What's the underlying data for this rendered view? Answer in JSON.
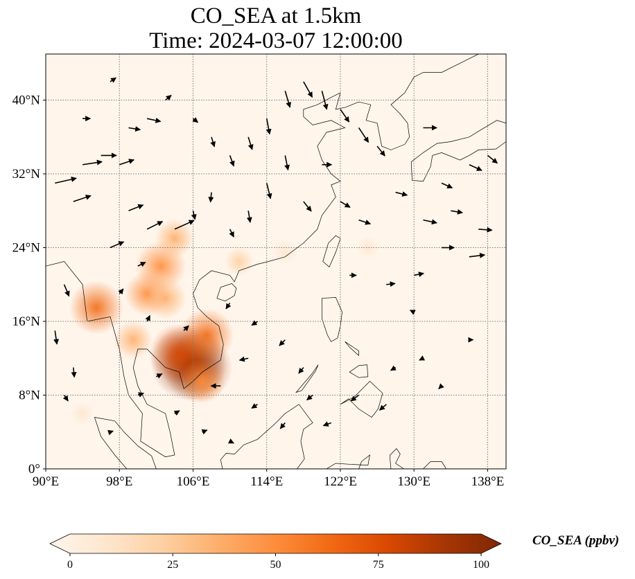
{
  "title": {
    "line1": "CO_SEA at 1.5km",
    "line2": "Time: 2024-03-07 12:00:00"
  },
  "map": {
    "lon_range": [
      90,
      140
    ],
    "lat_range": [
      0,
      45
    ],
    "x_ticks": [
      {
        "value": 90,
        "label": "90°E"
      },
      {
        "value": 98,
        "label": "98°E"
      },
      {
        "value": 106,
        "label": "106°E"
      },
      {
        "value": 114,
        "label": "114°E"
      },
      {
        "value": 122,
        "label": "122°E"
      },
      {
        "value": 130,
        "label": "130°E"
      },
      {
        "value": 138,
        "label": "138°E"
      }
    ],
    "y_ticks": [
      {
        "value": 0,
        "label": "0°"
      },
      {
        "value": 8,
        "label": "8°N"
      },
      {
        "value": 16,
        "label": "16°N"
      },
      {
        "value": 24,
        "label": "24°N"
      },
      {
        "value": 32,
        "label": "32°N"
      },
      {
        "value": 40,
        "label": "40°N"
      }
    ],
    "gridlines": "dotted",
    "field_background": "#fff5eb",
    "hotspots": [
      {
        "lon": 105.5,
        "lat": 11.5,
        "value": 95
      },
      {
        "lon": 106.5,
        "lat": 11.0,
        "value": 85
      },
      {
        "lon": 104.5,
        "lat": 12.5,
        "value": 70
      },
      {
        "lon": 107.5,
        "lat": 14.5,
        "value": 60
      },
      {
        "lon": 102.5,
        "lat": 22.0,
        "value": 55
      },
      {
        "lon": 95.5,
        "lat": 17.5,
        "value": 60
      },
      {
        "lon": 101.0,
        "lat": 19.0,
        "value": 45
      },
      {
        "lon": 103.0,
        "lat": 18.5,
        "value": 40
      },
      {
        "lon": 99.5,
        "lat": 14.0,
        "value": 35
      },
      {
        "lon": 104.0,
        "lat": 25.0,
        "value": 35
      },
      {
        "lon": 107.0,
        "lat": 9.5,
        "value": 45
      },
      {
        "lon": 111.0,
        "lat": 22.5,
        "value": 20
      },
      {
        "lon": 116.0,
        "lat": 23.5,
        "value": 15
      },
      {
        "lon": 125.0,
        "lat": 24.0,
        "value": 10
      },
      {
        "lon": 94.0,
        "lat": 6.0,
        "value": 12
      }
    ],
    "wind_vectors": [
      {
        "lon": 91,
        "lat": 31,
        "u": 2.2,
        "v": 0.5
      },
      {
        "lon": 93,
        "lat": 29,
        "u": 1.8,
        "v": 0.6
      },
      {
        "lon": 94,
        "lat": 33,
        "u": 2.0,
        "v": 0.3
      },
      {
        "lon": 96,
        "lat": 34,
        "u": 1.6,
        "v": 0.0
      },
      {
        "lon": 98,
        "lat": 33,
        "u": 1.5,
        "v": 0.5
      },
      {
        "lon": 99,
        "lat": 28,
        "u": 1.5,
        "v": 0.6
      },
      {
        "lon": 101,
        "lat": 26,
        "u": 1.6,
        "v": 0.8
      },
      {
        "lon": 104,
        "lat": 26,
        "u": 2.0,
        "v": 0.9
      },
      {
        "lon": 97,
        "lat": 24,
        "u": 1.4,
        "v": 0.6
      },
      {
        "lon": 100,
        "lat": 22,
        "u": 0.8,
        "v": 0.4
      },
      {
        "lon": 99,
        "lat": 37,
        "u": 1.2,
        "v": -0.2
      },
      {
        "lon": 101,
        "lat": 38,
        "u": 1.4,
        "v": -0.3
      },
      {
        "lon": 94,
        "lat": 38,
        "u": 0.8,
        "v": 0.0
      },
      {
        "lon": 97,
        "lat": 42,
        "u": 0.6,
        "v": 0.4
      },
      {
        "lon": 103,
        "lat": 40,
        "u": 0.6,
        "v": 0.5
      },
      {
        "lon": 106,
        "lat": 38,
        "u": 0.5,
        "v": -0.4
      },
      {
        "lon": 108,
        "lat": 36,
        "u": 0.3,
        "v": -1.0
      },
      {
        "lon": 110,
        "lat": 34,
        "u": 0.4,
        "v": -1.1
      },
      {
        "lon": 112,
        "lat": 36,
        "u": 0.4,
        "v": -1.3
      },
      {
        "lon": 114,
        "lat": 38,
        "u": 0.3,
        "v": -1.6
      },
      {
        "lon": 116,
        "lat": 41,
        "u": 0.5,
        "v": -1.7
      },
      {
        "lon": 118,
        "lat": 42,
        "u": 0.9,
        "v": -1.6
      },
      {
        "lon": 120,
        "lat": 41,
        "u": 0.5,
        "v": -1.9
      },
      {
        "lon": 122,
        "lat": 39,
        "u": 0.9,
        "v": -1.3
      },
      {
        "lon": 124,
        "lat": 37,
        "u": 1.0,
        "v": -1.5
      },
      {
        "lon": 126,
        "lat": 35,
        "u": 0.8,
        "v": -1.0
      },
      {
        "lon": 116,
        "lat": 34,
        "u": 0.3,
        "v": -1.5
      },
      {
        "lon": 114,
        "lat": 31,
        "u": 0.4,
        "v": -1.6
      },
      {
        "lon": 112,
        "lat": 28,
        "u": 0.2,
        "v": -1.2
      },
      {
        "lon": 108,
        "lat": 30,
        "u": -0.1,
        "v": -1.0
      },
      {
        "lon": 106,
        "lat": 28,
        "u": 0.2,
        "v": -0.9
      },
      {
        "lon": 110,
        "lat": 26,
        "u": 0.4,
        "v": -0.8
      },
      {
        "lon": 118,
        "lat": 29,
        "u": 0.8,
        "v": -1.0
      },
      {
        "lon": 120,
        "lat": 33,
        "u": 1.0,
        "v": 0.0
      },
      {
        "lon": 122,
        "lat": 29,
        "u": 1.0,
        "v": -0.6
      },
      {
        "lon": 124,
        "lat": 27,
        "u": 1.2,
        "v": -0.4
      },
      {
        "lon": 128,
        "lat": 30,
        "u": 1.2,
        "v": -0.3
      },
      {
        "lon": 131,
        "lat": 27,
        "u": 1.4,
        "v": -0.3
      },
      {
        "lon": 134,
        "lat": 28,
        "u": 1.2,
        "v": -0.2
      },
      {
        "lon": 137,
        "lat": 26,
        "u": 1.4,
        "v": -0.1
      },
      {
        "lon": 133,
        "lat": 24,
        "u": 1.3,
        "v": 0.0
      },
      {
        "lon": 136,
        "lat": 23,
        "u": 1.6,
        "v": 0.2
      },
      {
        "lon": 130,
        "lat": 21,
        "u": 1.0,
        "v": 0.2
      },
      {
        "lon": 127,
        "lat": 20,
        "u": 0.9,
        "v": 0.1
      },
      {
        "lon": 123,
        "lat": 21,
        "u": 0.7,
        "v": 0.0
      },
      {
        "lon": 131,
        "lat": 37,
        "u": 1.4,
        "v": 0.0
      },
      {
        "lon": 136,
        "lat": 33,
        "u": 1.3,
        "v": -0.6
      },
      {
        "lon": 138,
        "lat": 34,
        "u": 1.0,
        "v": -0.8
      },
      {
        "lon": 133,
        "lat": 31,
        "u": 1.1,
        "v": -0.5
      },
      {
        "lon": 92,
        "lat": 20,
        "u": 0.5,
        "v": -1.2
      },
      {
        "lon": 91,
        "lat": 15,
        "u": 0.2,
        "v": -1.4
      },
      {
        "lon": 93,
        "lat": 11,
        "u": 0.1,
        "v": -1.0
      },
      {
        "lon": 92,
        "lat": 8,
        "u": 0.4,
        "v": -0.6
      },
      {
        "lon": 110,
        "lat": 18,
        "u": -0.4,
        "v": -0.6
      },
      {
        "lon": 113,
        "lat": 16,
        "u": -0.6,
        "v": -0.4
      },
      {
        "lon": 116,
        "lat": 14,
        "u": -0.6,
        "v": -0.6
      },
      {
        "lon": 118,
        "lat": 11,
        "u": -0.5,
        "v": -0.6
      },
      {
        "lon": 112,
        "lat": 12,
        "u": -0.9,
        "v": -0.2
      },
      {
        "lon": 109,
        "lat": 9,
        "u": -1.0,
        "v": 0.0
      },
      {
        "lon": 113,
        "lat": 7,
        "u": -0.6,
        "v": -0.4
      },
      {
        "lon": 116,
        "lat": 5,
        "u": -0.5,
        "v": -0.6
      },
      {
        "lon": 119,
        "lat": 8,
        "u": -0.6,
        "v": -0.5
      },
      {
        "lon": 121,
        "lat": 5,
        "u": -0.8,
        "v": -0.3
      },
      {
        "lon": 124,
        "lat": 8,
        "u": -0.8,
        "v": -0.6
      },
      {
        "lon": 127,
        "lat": 7,
        "u": -0.7,
        "v": -0.6
      },
      {
        "lon": 128,
        "lat": 11,
        "u": -0.5,
        "v": -0.3
      },
      {
        "lon": 131,
        "lat": 12,
        "u": -0.4,
        "v": -0.2
      },
      {
        "lon": 133,
        "lat": 9,
        "u": -0.3,
        "v": -0.3
      },
      {
        "lon": 136,
        "lat": 14,
        "u": 0.4,
        "v": 0.0
      },
      {
        "lon": 130,
        "lat": 17,
        "u": -0.4,
        "v": 0.2
      },
      {
        "lon": 100,
        "lat": 8,
        "u": 0.6,
        "v": 0.2
      },
      {
        "lon": 104,
        "lat": 6,
        "u": 0.5,
        "v": 0.3
      },
      {
        "lon": 107,
        "lat": 4,
        "u": 0.5,
        "v": 0.2
      },
      {
        "lon": 110,
        "lat": 3,
        "u": 0.4,
        "v": -0.2
      },
      {
        "lon": 97,
        "lat": 4,
        "u": 0.3,
        "v": 0.1
      },
      {
        "lon": 102,
        "lat": 10,
        "u": 0.6,
        "v": 0.3
      },
      {
        "lon": 105,
        "lat": 15,
        "u": 0.5,
        "v": 0.5
      },
      {
        "lon": 101,
        "lat": 16,
        "u": 0.3,
        "v": 0.6
      },
      {
        "lon": 98,
        "lat": 19,
        "u": 0.4,
        "v": 0.5
      }
    ],
    "land_polygons": [
      [
        [
          90,
          22
        ],
        [
          92,
          22.5
        ],
        [
          94,
          20
        ],
        [
          94.5,
          16
        ],
        [
          97,
          16.5
        ],
        [
          98,
          13
        ],
        [
          98.5,
          10
        ],
        [
          99,
          8
        ],
        [
          100.5,
          6
        ],
        [
          100.3,
          3
        ],
        [
          103,
          1.3
        ],
        [
          104,
          1.5
        ],
        [
          103.5,
          4
        ],
        [
          103,
          6
        ],
        [
          101,
          7
        ],
        [
          100,
          9
        ],
        [
          99.5,
          11
        ],
        [
          100,
          13
        ],
        [
          101,
          13
        ],
        [
          102,
          12
        ],
        [
          103,
          11
        ],
        [
          104.5,
          10.5
        ],
        [
          105,
          8.7
        ],
        [
          106,
          9.5
        ],
        [
          107,
          10.5
        ],
        [
          109,
          11.8
        ],
        [
          109.3,
          13.5
        ],
        [
          108.8,
          15.5
        ],
        [
          107.5,
          16.5
        ],
        [
          106.5,
          17.5
        ],
        [
          106,
          19
        ],
        [
          106.7,
          20.5
        ],
        [
          108,
          21.5
        ],
        [
          110,
          21
        ],
        [
          110.5,
          20.3
        ],
        [
          111,
          21.5
        ],
        [
          113,
          22.2
        ],
        [
          114.2,
          22.5
        ],
        [
          116,
          23
        ],
        [
          118,
          24.5
        ],
        [
          119.5,
          26
        ],
        [
          120,
          27.5
        ],
        [
          121.5,
          29.5
        ],
        [
          121,
          30.8
        ],
        [
          122,
          31.2
        ],
        [
          121,
          32
        ],
        [
          120,
          33.5
        ],
        [
          119.5,
          35
        ],
        [
          120.5,
          36.5
        ],
        [
          122.5,
          37
        ],
        [
          121,
          37.8
        ],
        [
          119,
          37.3
        ],
        [
          118,
          38.2
        ],
        [
          118,
          39
        ],
        [
          119.5,
          39.5
        ],
        [
          121,
          40.3
        ],
        [
          122,
          40.8
        ],
        [
          121.5,
          39
        ],
        [
          122.5,
          39.2
        ],
        [
          124,
          39.8
        ],
        [
          125.3,
          39.5
        ],
        [
          125,
          38.5
        ],
        [
          124.8,
          37.8
        ],
        [
          126,
          37.5
        ],
        [
          126.5,
          35
        ],
        [
          127.5,
          34.6
        ],
        [
          129,
          35.2
        ],
        [
          129.5,
          36
        ],
        [
          129.3,
          37.5
        ],
        [
          128.5,
          38.5
        ],
        [
          127.5,
          39.5
        ],
        [
          129,
          40.8
        ],
        [
          130,
          42.5
        ],
        [
          131,
          43
        ],
        [
          133,
          43
        ],
        [
          135,
          44
        ],
        [
          137,
          45
        ],
        [
          90,
          45
        ]
      ],
      [
        [
          120.1,
          22.5
        ],
        [
          120.8,
          21.9
        ],
        [
          121.5,
          23.5
        ],
        [
          122,
          25
        ],
        [
          121.5,
          25.3
        ],
        [
          120.7,
          24.5
        ]
      ],
      [
        [
          108.6,
          18.5
        ],
        [
          109.5,
          18.2
        ],
        [
          110.5,
          18.8
        ],
        [
          110.7,
          19.6
        ],
        [
          110.2,
          20.1
        ],
        [
          109,
          19.7
        ]
      ],
      [
        [
          129.8,
          31.3
        ],
        [
          131,
          31.2
        ],
        [
          131.8,
          32.8
        ],
        [
          132,
          34
        ],
        [
          133,
          34.3
        ],
        [
          135,
          33.5
        ],
        [
          136,
          34
        ],
        [
          137,
          34.6
        ],
        [
          138.9,
          34.7
        ],
        [
          140,
          35.5
        ],
        [
          140,
          37.5
        ],
        [
          139,
          37.8
        ],
        [
          137.3,
          36.8
        ],
        [
          136,
          36
        ],
        [
          134,
          35.5
        ],
        [
          132.5,
          35.3
        ],
        [
          131,
          34.3
        ],
        [
          129.7,
          33.3
        ]
      ],
      [
        [
          120,
          18.5
        ],
        [
          121.5,
          18.6
        ],
        [
          122.2,
          17
        ],
        [
          122,
          15.5
        ],
        [
          121.7,
          14.2
        ],
        [
          121,
          13.8
        ],
        [
          120.6,
          14.5
        ],
        [
          120,
          16.3
        ]
      ],
      [
        [
          122.5,
          13.8
        ],
        [
          124,
          12.8
        ],
        [
          124,
          12.3
        ],
        [
          123,
          13.2
        ]
      ],
      [
        [
          123,
          10.5
        ],
        [
          124,
          11.2
        ],
        [
          124.9,
          11.3
        ],
        [
          125,
          10
        ],
        [
          124,
          9.9
        ]
      ],
      [
        [
          122,
          7
        ],
        [
          123.5,
          7.8
        ],
        [
          125.2,
          9.5
        ],
        [
          126.6,
          8.2
        ],
        [
          126.1,
          6.5
        ],
        [
          125.4,
          5.6
        ],
        [
          124,
          6.5
        ],
        [
          122.9,
          7.6
        ]
      ],
      [
        [
          117.2,
          8.3
        ],
        [
          118.9,
          10.3
        ],
        [
          119.6,
          11.3
        ],
        [
          119.3,
          10.6
        ],
        [
          117.8,
          8.5
        ]
      ],
      [
        [
          109.6,
          1.7
        ],
        [
          110.5,
          1.6
        ],
        [
          111.5,
          2.6
        ],
        [
          113,
          3.2
        ],
        [
          114.8,
          4.8
        ],
        [
          116,
          6
        ],
        [
          117.5,
          7
        ],
        [
          119,
          5
        ],
        [
          118,
          4.3
        ],
        [
          117.7,
          3
        ],
        [
          118.1,
          1.1
        ],
        [
          117.3,
          0
        ],
        [
          109.2,
          0
        ],
        [
          109,
          1
        ]
      ],
      [
        [
          95.3,
          5.6
        ],
        [
          97.5,
          5.2
        ],
        [
          98.5,
          4
        ],
        [
          100,
          2.5
        ],
        [
          101.5,
          1.4
        ],
        [
          102,
          0
        ],
        [
          98.8,
          0
        ],
        [
          97.5,
          1.5
        ],
        [
          96,
          3.5
        ]
      ],
      [
        [
          124.3,
          0.8
        ],
        [
          125.2,
          1.5
        ],
        [
          125,
          0.4
        ],
        [
          123,
          0.5
        ],
        [
          121.5,
          0.6
        ],
        [
          120.5,
          0
        ],
        [
          124,
          0
        ]
      ],
      [
        [
          127.4,
          1.5
        ],
        [
          128.1,
          2.2
        ],
        [
          128.5,
          1.6
        ],
        [
          128,
          0.6
        ],
        [
          128.9,
          0
        ],
        [
          127.5,
          0
        ],
        [
          127.4,
          1
        ]
      ],
      [
        [
          131,
          0
        ],
        [
          133.5,
          0
        ],
        [
          133,
          0.8
        ],
        [
          131.8,
          0.8
        ]
      ]
    ]
  },
  "colorbar": {
    "label": "CO_SEA (ppbv)",
    "vmin": 0,
    "vmax": 100,
    "extend": "both",
    "ticks": [
      {
        "value": 0,
        "label": "0"
      },
      {
        "value": 25,
        "label": "25"
      },
      {
        "value": 50,
        "label": "50"
      },
      {
        "value": 75,
        "label": "75"
      },
      {
        "value": 100,
        "label": "100"
      }
    ],
    "colors": [
      "#fff5eb",
      "#fee6ce",
      "#fdd0a2",
      "#fdae6b",
      "#fd8d3c",
      "#f16913",
      "#d94801",
      "#a63603",
      "#7f2704"
    ]
  }
}
